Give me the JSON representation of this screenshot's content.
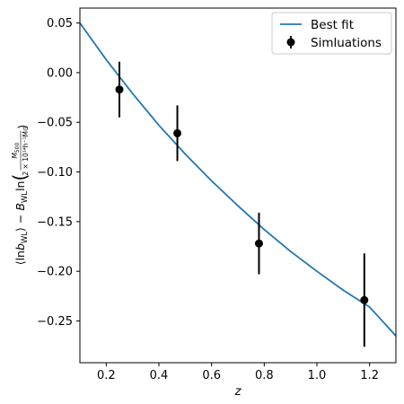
{
  "chart_data": {
    "type": "scatter",
    "xlabel": "z",
    "ylabel": {
      "prefix": "⟨ln",
      "b_sub": "b",
      "b_subscript": "WL",
      "middle": "⟩ − ",
      "B": "B",
      "B_subscript": "WL",
      "ln": "ln",
      "frac_num": "M",
      "frac_num_sub": "500",
      "frac_den": "2 × 10¹⁴h⁻¹M⊙"
    },
    "xlim": [
      0.1,
      1.3
    ],
    "ylim": [
      -0.292,
      0.065
    ],
    "x_ticks": [
      {
        "value": 0.2,
        "label": "0.2"
      },
      {
        "value": 0.4,
        "label": "0.4"
      },
      {
        "value": 0.6,
        "label": "0.6"
      },
      {
        "value": 0.8,
        "label": "0.8"
      },
      {
        "value": 1.0,
        "label": "1.0"
      },
      {
        "value": 1.2,
        "label": "1.2"
      }
    ],
    "y_ticks": [
      {
        "value": 0.05,
        "label": "0.05"
      },
      {
        "value": 0.0,
        "label": "0.00"
      },
      {
        "value": -0.05,
        "label": "−0.05"
      },
      {
        "value": -0.1,
        "label": "−0.10"
      },
      {
        "value": -0.15,
        "label": "−0.15"
      },
      {
        "value": -0.2,
        "label": "−0.20"
      },
      {
        "value": -0.25,
        "label": "−0.25"
      }
    ],
    "series": [
      {
        "name": "Best fit",
        "kind": "line",
        "color": "#1f77b4",
        "x": [
          0.1,
          0.2,
          0.3,
          0.4,
          0.5,
          0.6,
          0.7,
          0.8,
          0.9,
          1.0,
          1.1,
          1.2,
          1.3
        ],
        "y": [
          0.05,
          0.013,
          -0.021,
          -0.053,
          -0.082,
          -0.109,
          -0.134,
          -0.158,
          -0.18,
          -0.2,
          -0.219,
          -0.236,
          -0.265
        ]
      },
      {
        "name": "Simluations",
        "kind": "errorbar",
        "color": "#000000",
        "points": [
          {
            "x": 0.25,
            "y": -0.017,
            "yerr": 0.028
          },
          {
            "x": 0.47,
            "y": -0.061,
            "yerr": 0.028
          },
          {
            "x": 0.78,
            "y": -0.172,
            "yerr": 0.031
          },
          {
            "x": 1.18,
            "y": -0.229,
            "yerr": 0.047
          }
        ]
      }
    ],
    "legend": {
      "position": "top-right",
      "entries": [
        "Best fit",
        "Simluations"
      ]
    },
    "grid": false
  }
}
